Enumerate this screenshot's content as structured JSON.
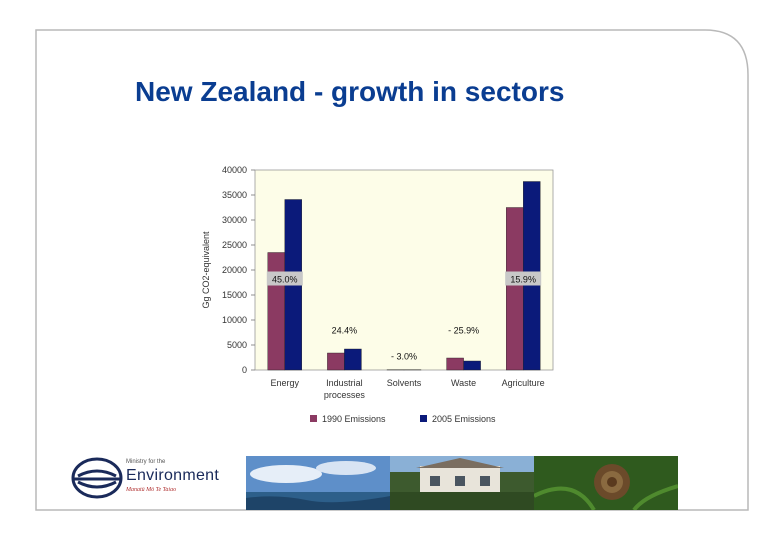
{
  "slide": {
    "title": "New Zealand - growth in sectors"
  },
  "logo": {
    "line1": "Ministry for the",
    "line2": "Environment",
    "line3": "Manatū Mō Te Taiao"
  },
  "colors": {
    "title": "#0a3d91",
    "series1990": "#8b3a62",
    "series2005": "#0b1a7a",
    "plot_bg": "#fdfde8",
    "label_box": "#c8c8c8"
  },
  "chart_data": {
    "type": "bar",
    "ylabel": "Gg CO2-equivalent",
    "ylim": [
      0,
      40000
    ],
    "yticks": [
      "0",
      "5000",
      "10000",
      "15000",
      "20000",
      "25000",
      "30000",
      "35000",
      "40000"
    ],
    "categories": [
      "Energy",
      "Industrial processes",
      "Solvents",
      "Waste",
      "Agriculture"
    ],
    "series": [
      {
        "name": "1990 Emissions",
        "values": [
          23500,
          3400,
          50,
          2400,
          32500
        ]
      },
      {
        "name": "2005 Emissions",
        "values": [
          34100,
          4200,
          50,
          1800,
          37700
        ]
      }
    ],
    "annotations": [
      {
        "category": "Energy",
        "text": "45.0%",
        "boxed": true,
        "y": 17700
      },
      {
        "category": "Industrial processes",
        "text": "24.4%",
        "boxed": false,
        "y": 7500
      },
      {
        "category": "Solvents",
        "text": "- 3.0%",
        "boxed": false,
        "y": 2300
      },
      {
        "category": "Waste",
        "text": "- 25.9%",
        "boxed": false,
        "y": 7500
      },
      {
        "category": "Agriculture",
        "text": "15.9%",
        "boxed": true,
        "y": 17700
      }
    ],
    "legend_position": "bottom",
    "grid": false
  }
}
